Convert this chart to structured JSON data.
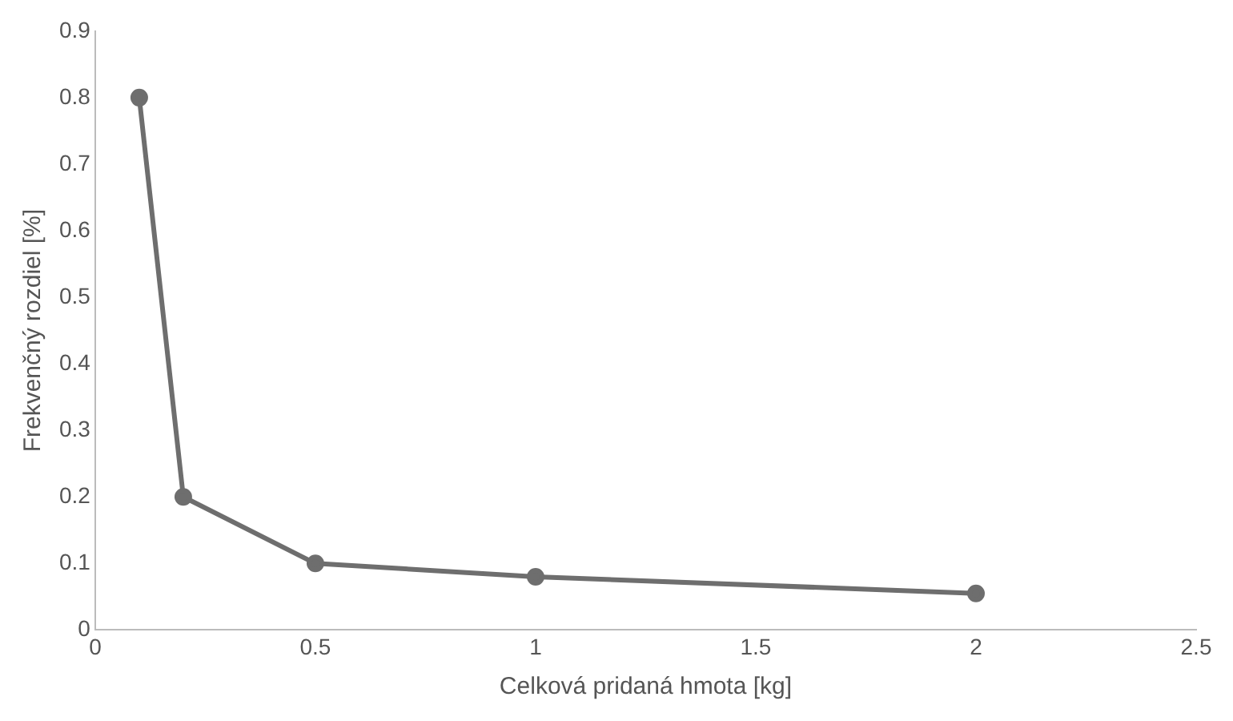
{
  "chart_data": {
    "type": "line",
    "xlabel": "Celková pridaná hmota [kg]",
    "ylabel": "Frekvenčný rozdiel [%]",
    "x": [
      0.1,
      0.2,
      0.5,
      1,
      2
    ],
    "series": [
      {
        "color": "#6e6e6e",
        "values": [
          0.8,
          0.2,
          0.1,
          0.08,
          0.055
        ]
      }
    ],
    "xlim": [
      0,
      2.5
    ],
    "xticks": [
      0,
      0.5,
      1,
      1.5,
      2,
      2.5
    ],
    "ylim": [
      0,
      0.9
    ],
    "yticks": [
      0,
      0.1,
      0.2,
      0.3,
      0.4,
      0.5,
      0.6,
      0.7,
      0.8,
      0.9
    ],
    "marker": "circle",
    "line_style": "solid",
    "legend": false,
    "grid": false
  }
}
